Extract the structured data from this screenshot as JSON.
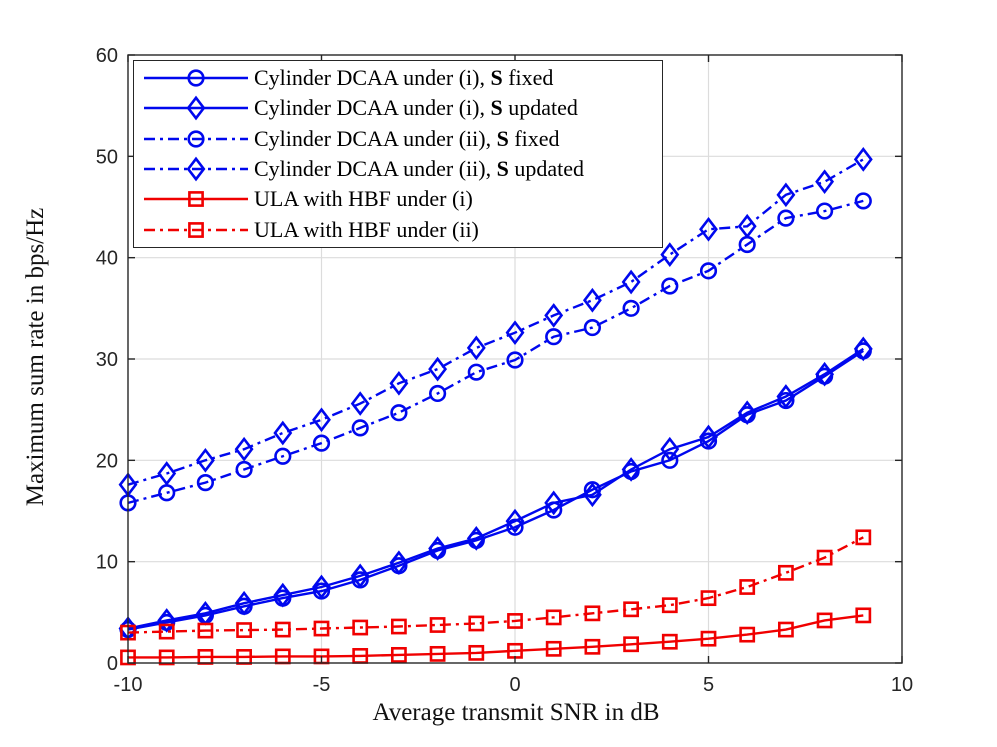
{
  "figure": {
    "background": "#ffffff"
  },
  "colors": {
    "blue": "#0008ee",
    "red": "#f00000",
    "grid": "#dcdcdc",
    "axis": "#262626",
    "tick_text": "#262626",
    "label_text": "#111111"
  },
  "chart_data": {
    "type": "line",
    "title": "",
    "xlabel": "Average transmit SNR in dB",
    "ylabel": "Maximum sum rate in bps/Hz",
    "xlim": [
      -10,
      10
    ],
    "ylim": [
      0,
      60
    ],
    "xticks": [
      -10,
      -5,
      0,
      5,
      10
    ],
    "xtick_labels": [
      "-10",
      "-5",
      "0",
      "5",
      "10"
    ],
    "yticks": [
      0,
      10,
      20,
      30,
      40,
      50,
      60
    ],
    "ytick_labels": [
      "0",
      "10",
      "20",
      "30",
      "40",
      "50",
      "60"
    ],
    "grid": true,
    "legend_position": "top-left",
    "x": [
      -10,
      -9,
      -8,
      -7,
      -6,
      -5,
      -4,
      -3,
      -2,
      -1,
      0,
      1,
      2,
      3,
      4,
      5,
      6,
      7,
      8,
      9
    ],
    "series": [
      {
        "name": "Cylinder DCAA under (i), S fixed",
        "slug": "cylinder-dcaa-i-s-fixed",
        "label_parts": {
          "pre": "Cylinder DCAA under (i), ",
          "bold": "S",
          "post": " fixed"
        },
        "color": "#0008ee",
        "line": "solid",
        "marker": "circle",
        "values": [
          3.3,
          4.0,
          4.7,
          5.6,
          6.4,
          7.1,
          8.2,
          9.6,
          11.1,
          12.1,
          13.4,
          15.1,
          17.1,
          18.9,
          20.0,
          21.9,
          24.5,
          25.9,
          28.3,
          30.8
        ]
      },
      {
        "name": "Cylinder DCAA under (i), S updated",
        "slug": "cylinder-dcaa-i-s-updated",
        "label_parts": {
          "pre": "Cylinder DCAA under (i), ",
          "bold": "S",
          "post": " updated"
        },
        "color": "#0008ee",
        "line": "solid",
        "marker": "diamond",
        "values": [
          3.4,
          4.2,
          4.9,
          5.9,
          6.7,
          7.5,
          8.6,
          9.9,
          11.3,
          12.3,
          14.0,
          15.8,
          16.6,
          19.1,
          21.1,
          22.3,
          24.7,
          26.3,
          28.5,
          31.0
        ]
      },
      {
        "name": "Cylinder DCAA under (ii), S fixed",
        "slug": "cylinder-dcaa-ii-s-fixed",
        "label_parts": {
          "pre": "Cylinder DCAA under (ii), ",
          "bold": "S",
          "post": " fixed"
        },
        "color": "#0008ee",
        "line": "dashdot",
        "marker": "circle",
        "values": [
          15.8,
          16.8,
          17.8,
          19.1,
          20.4,
          21.7,
          23.2,
          24.7,
          26.6,
          28.7,
          29.9,
          32.2,
          33.1,
          35.0,
          37.2,
          38.7,
          41.3,
          43.9,
          44.6,
          45.6
        ]
      },
      {
        "name": "Cylinder DCAA under (ii), S updated",
        "slug": "cylinder-dcaa-ii-s-updated",
        "label_parts": {
          "pre": "Cylinder DCAA under (ii), ",
          "bold": "S",
          "post": " updated"
        },
        "color": "#0008ee",
        "line": "dashdot",
        "marker": "diamond",
        "values": [
          17.6,
          18.7,
          20.0,
          21.1,
          22.7,
          24.0,
          25.6,
          27.6,
          29.0,
          31.1,
          32.6,
          34.3,
          35.8,
          37.6,
          40.3,
          42.8,
          43.1,
          46.2,
          47.5,
          49.7
        ]
      },
      {
        "name": "ULA with HBF under (i)",
        "slug": "ula-hbf-i",
        "label_parts": {
          "pre": "ULA with HBF under (i)",
          "bold": "",
          "post": ""
        },
        "color": "#f00000",
        "line": "solid",
        "marker": "square",
        "values": [
          0.55,
          0.55,
          0.6,
          0.6,
          0.65,
          0.65,
          0.7,
          0.8,
          0.9,
          1.0,
          1.2,
          1.4,
          1.6,
          1.85,
          2.1,
          2.4,
          2.8,
          3.3,
          4.2,
          4.7
        ]
      },
      {
        "name": "ULA with HBF under (ii)",
        "slug": "ula-hbf-ii",
        "label_parts": {
          "pre": "ULA with HBF under (ii)",
          "bold": "",
          "post": ""
        },
        "color": "#f00000",
        "line": "dashdot",
        "marker": "square",
        "values": [
          3.0,
          3.1,
          3.2,
          3.25,
          3.3,
          3.4,
          3.5,
          3.6,
          3.75,
          3.9,
          4.15,
          4.5,
          4.9,
          5.3,
          5.7,
          6.4,
          7.5,
          8.9,
          10.4,
          12.4
        ]
      }
    ]
  }
}
